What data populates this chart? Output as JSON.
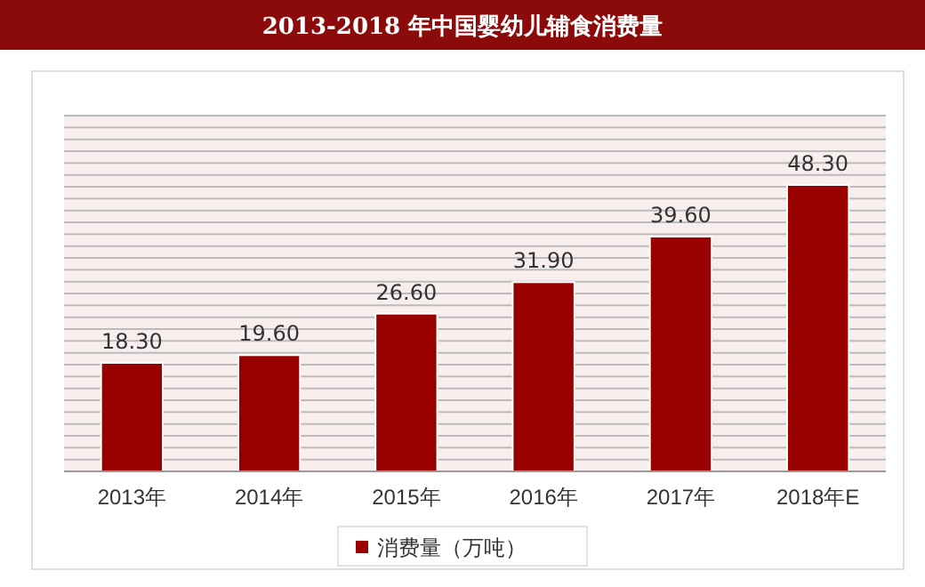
{
  "chart_data": {
    "type": "bar",
    "title": "2013-2018 年中国婴幼儿辅食消费量",
    "categories": [
      "2013年",
      "2014年",
      "2015年",
      "2016年",
      "2017年",
      "2018年E"
    ],
    "series": [
      {
        "name": "消费量（万吨）",
        "color": "#990000",
        "values": [
          18.3,
          19.6,
          26.6,
          31.9,
          39.6,
          48.3
        ],
        "value_labels": [
          "18.30",
          "19.60",
          "26.60",
          "31.90",
          "39.60",
          "48.30"
        ]
      }
    ],
    "tick_labels": "x",
    "grid": "y",
    "legend": "bottom"
  }
}
